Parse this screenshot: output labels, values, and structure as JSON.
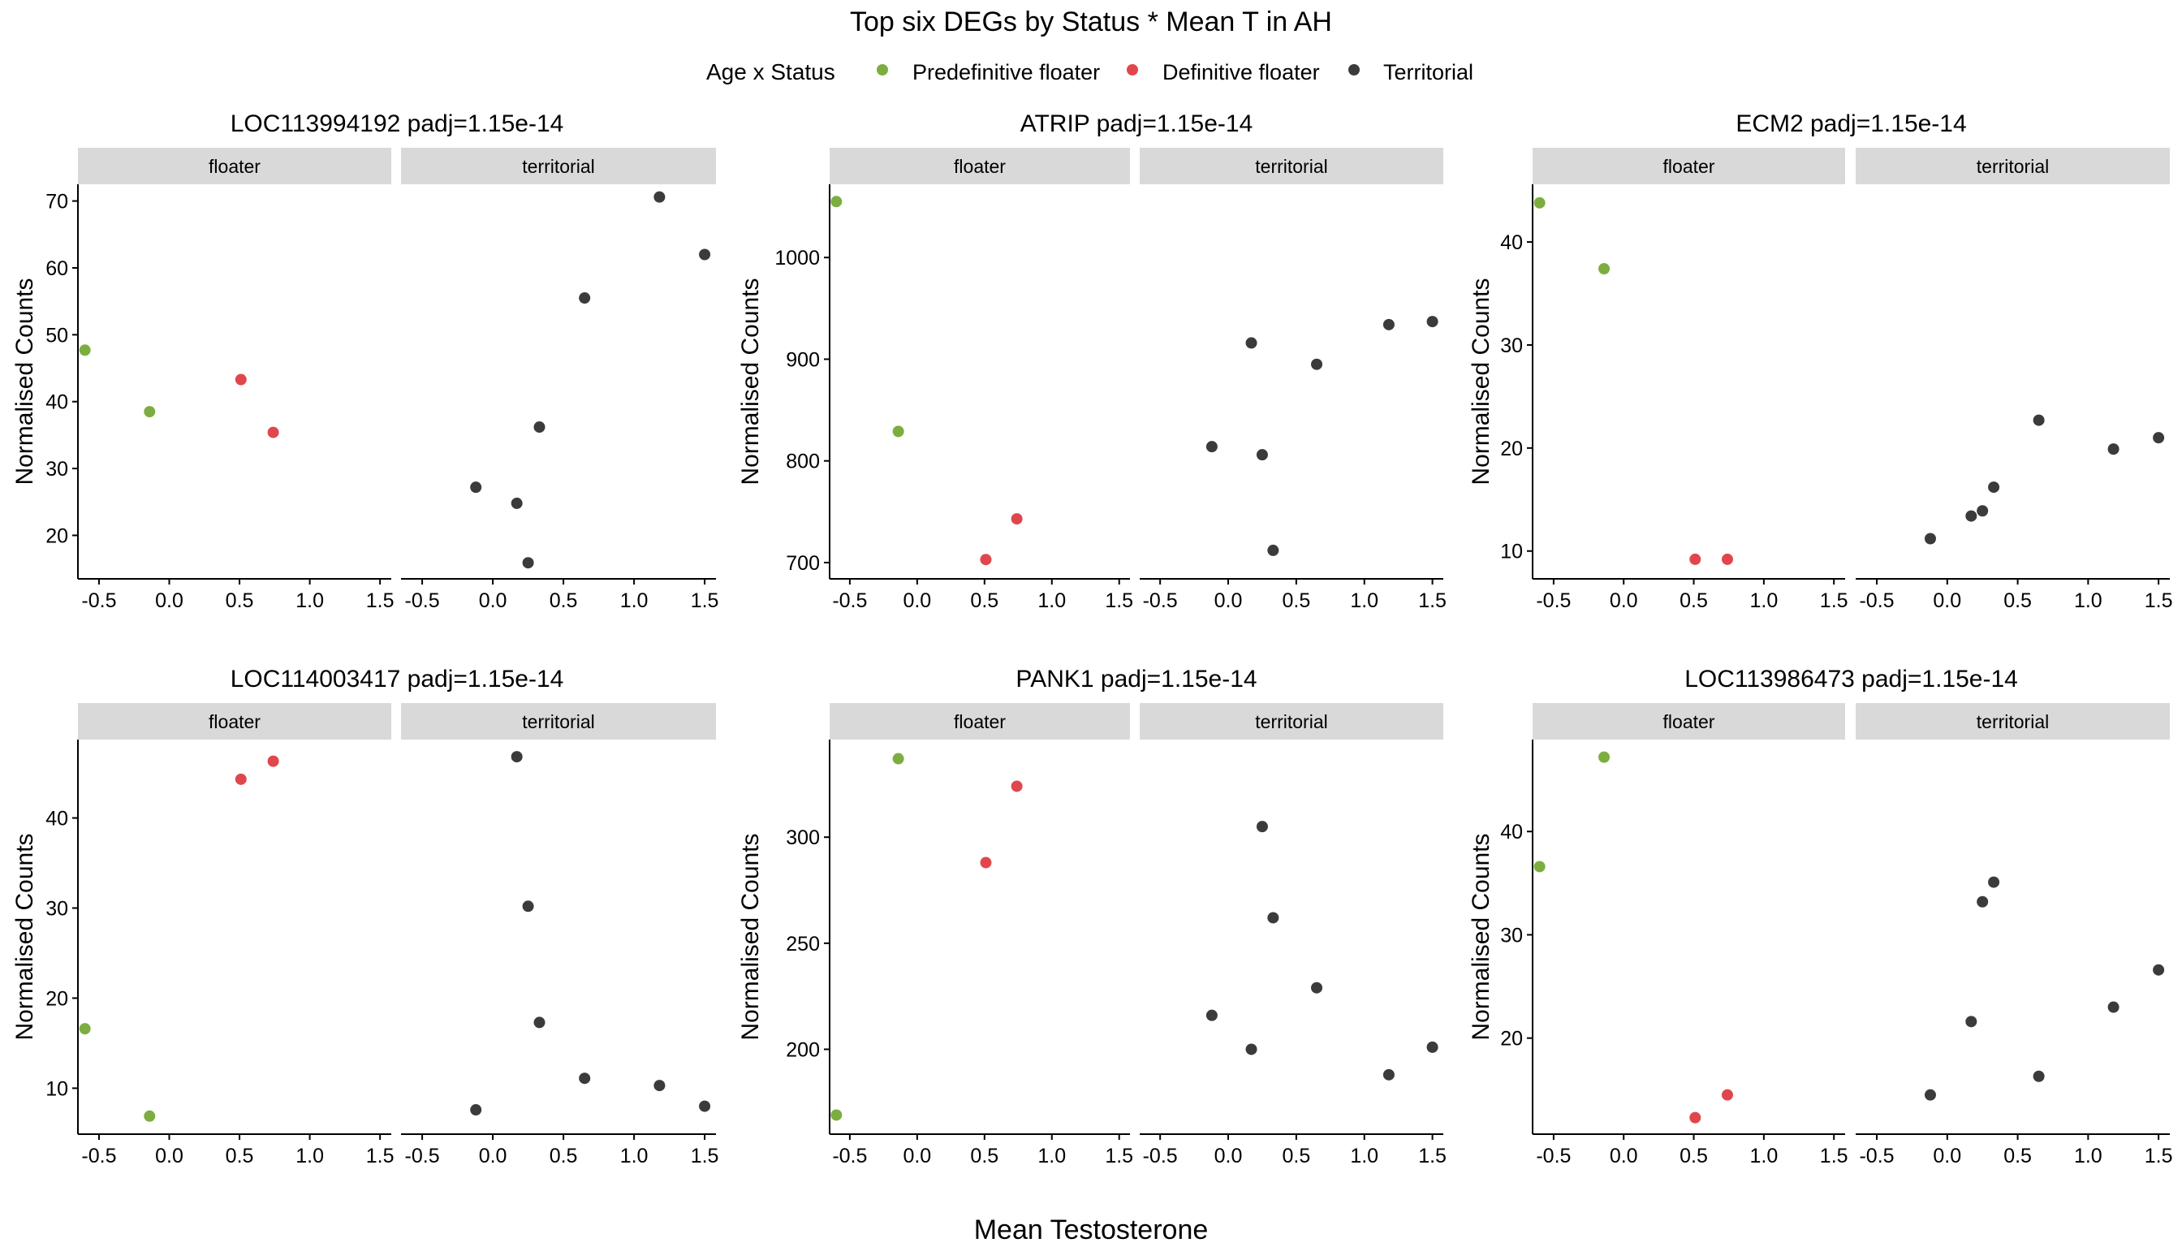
{
  "title": "Top six DEGs by Status * Mean T in AH",
  "xlabel": "Mean Testosterone",
  "ylabel": "Normalised Counts",
  "legend": {
    "title": "Age x Status",
    "position": "top",
    "entries": [
      {
        "name": "Predefinitive floater",
        "color": "#7CAE3F"
      },
      {
        "name": "Definitive floater",
        "color": "#E0474C"
      },
      {
        "name": "Territorial",
        "color": "#3B3B3B"
      }
    ]
  },
  "facet_labels": [
    "floater",
    "territorial"
  ],
  "x_ticks": [
    -0.5,
    0.0,
    0.5,
    1.0,
    1.5
  ],
  "x_tick_labels": [
    "-0.5",
    "0.0",
    "0.5",
    "1.0",
    "1.5"
  ],
  "chart_data": [
    {
      "type": "scatter",
      "title": "LOC113994192 padj=1.15e-14",
      "xlim": [
        -0.65,
        1.58
      ],
      "ylim": [
        13.5,
        72.5
      ],
      "y_ticks": [
        20,
        30,
        40,
        50,
        60,
        70
      ],
      "floater": [
        {
          "x": -0.6,
          "y": 47.7,
          "group": 0
        },
        {
          "x": -0.14,
          "y": 38.5,
          "group": 0
        },
        {
          "x": 0.51,
          "y": 43.3,
          "group": 1
        },
        {
          "x": 0.74,
          "y": 35.4,
          "group": 1
        }
      ],
      "territorial": [
        {
          "x": -0.12,
          "y": 27.2,
          "group": 2
        },
        {
          "x": 0.17,
          "y": 24.8,
          "group": 2
        },
        {
          "x": 0.25,
          "y": 15.9,
          "group": 2
        },
        {
          "x": 0.33,
          "y": 36.2,
          "group": 2
        },
        {
          "x": 0.65,
          "y": 55.5,
          "group": 2
        },
        {
          "x": 1.18,
          "y": 70.6,
          "group": 2
        },
        {
          "x": 1.5,
          "y": 62.0,
          "group": 2
        }
      ]
    },
    {
      "type": "scatter",
      "title": "ATRIP padj=1.15e-14",
      "xlim": [
        -0.65,
        1.58
      ],
      "ylim": [
        684,
        1072
      ],
      "y_ticks": [
        700,
        800,
        900,
        1000
      ],
      "floater": [
        {
          "x": -0.6,
          "y": 1055,
          "group": 0
        },
        {
          "x": -0.14,
          "y": 829,
          "group": 0
        },
        {
          "x": 0.51,
          "y": 703,
          "group": 1
        },
        {
          "x": 0.74,
          "y": 743,
          "group": 1
        }
      ],
      "territorial": [
        {
          "x": -0.12,
          "y": 814,
          "group": 2
        },
        {
          "x": 0.17,
          "y": 916,
          "group": 2
        },
        {
          "x": 0.25,
          "y": 806,
          "group": 2
        },
        {
          "x": 0.33,
          "y": 712,
          "group": 2
        },
        {
          "x": 0.65,
          "y": 895,
          "group": 2
        },
        {
          "x": 1.18,
          "y": 934,
          "group": 2
        },
        {
          "x": 1.5,
          "y": 937,
          "group": 2
        }
      ]
    },
    {
      "type": "scatter",
      "title": "ECM2 padj=1.15e-14",
      "xlim": [
        -0.65,
        1.58
      ],
      "ylim": [
        7.3,
        45.6
      ],
      "y_ticks": [
        10,
        20,
        30,
        40
      ],
      "floater": [
        {
          "x": -0.6,
          "y": 43.8,
          "group": 0
        },
        {
          "x": -0.14,
          "y": 37.4,
          "group": 0
        },
        {
          "x": 0.51,
          "y": 9.2,
          "group": 1
        },
        {
          "x": 0.74,
          "y": 9.2,
          "group": 1
        }
      ],
      "territorial": [
        {
          "x": -0.12,
          "y": 11.2,
          "group": 2
        },
        {
          "x": 0.17,
          "y": 13.4,
          "group": 2
        },
        {
          "x": 0.25,
          "y": 13.9,
          "group": 2
        },
        {
          "x": 0.33,
          "y": 16.2,
          "group": 2
        },
        {
          "x": 0.65,
          "y": 22.7,
          "group": 2
        },
        {
          "x": 1.18,
          "y": 19.9,
          "group": 2
        },
        {
          "x": 1.5,
          "y": 21.0,
          "group": 2
        }
      ]
    },
    {
      "type": "scatter",
      "title": "LOC114003417 padj=1.15e-14",
      "xlim": [
        -0.65,
        1.58
      ],
      "ylim": [
        4.9,
        48.7
      ],
      "y_ticks": [
        10,
        20,
        30,
        40
      ],
      "floater": [
        {
          "x": -0.6,
          "y": 16.6,
          "group": 0
        },
        {
          "x": -0.14,
          "y": 6.9,
          "group": 0
        },
        {
          "x": 0.51,
          "y": 44.3,
          "group": 1
        },
        {
          "x": 0.74,
          "y": 46.3,
          "group": 1
        }
      ],
      "territorial": [
        {
          "x": -0.12,
          "y": 7.6,
          "group": 2
        },
        {
          "x": 0.17,
          "y": 46.8,
          "group": 2
        },
        {
          "x": 0.25,
          "y": 30.2,
          "group": 2
        },
        {
          "x": 0.33,
          "y": 17.3,
          "group": 2
        },
        {
          "x": 0.65,
          "y": 11.1,
          "group": 2
        },
        {
          "x": 1.18,
          "y": 10.3,
          "group": 2
        },
        {
          "x": 1.5,
          "y": 8.0,
          "group": 2
        }
      ]
    },
    {
      "type": "scatter",
      "title": "PANK1 padj=1.15e-14",
      "xlim": [
        -0.65,
        1.58
      ],
      "ylim": [
        160,
        346
      ],
      "y_ticks": [
        200,
        250,
        300
      ],
      "floater": [
        {
          "x": -0.6,
          "y": 169,
          "group": 0
        },
        {
          "x": -0.14,
          "y": 337,
          "group": 0
        },
        {
          "x": 0.51,
          "y": 288,
          "group": 1
        },
        {
          "x": 0.74,
          "y": 324,
          "group": 1
        }
      ],
      "territorial": [
        {
          "x": -0.12,
          "y": 216,
          "group": 2
        },
        {
          "x": 0.17,
          "y": 200,
          "group": 2
        },
        {
          "x": 0.25,
          "y": 305,
          "group": 2
        },
        {
          "x": 0.33,
          "y": 262,
          "group": 2
        },
        {
          "x": 0.65,
          "y": 229,
          "group": 2
        },
        {
          "x": 1.18,
          "y": 188,
          "group": 2
        },
        {
          "x": 1.5,
          "y": 201,
          "group": 2
        }
      ]
    },
    {
      "type": "scatter",
      "title": "LOC113986473 padj=1.15e-14",
      "xlim": [
        -0.65,
        1.58
      ],
      "ylim": [
        10.7,
        48.9
      ],
      "y_ticks": [
        20,
        30,
        40
      ],
      "floater": [
        {
          "x": -0.6,
          "y": 36.6,
          "group": 0
        },
        {
          "x": -0.14,
          "y": 47.2,
          "group": 0
        },
        {
          "x": 0.51,
          "y": 12.3,
          "group": 1
        },
        {
          "x": 0.74,
          "y": 14.5,
          "group": 1
        }
      ],
      "territorial": [
        {
          "x": -0.12,
          "y": 14.5,
          "group": 2
        },
        {
          "x": 0.17,
          "y": 21.6,
          "group": 2
        },
        {
          "x": 0.25,
          "y": 33.2,
          "group": 2
        },
        {
          "x": 0.33,
          "y": 35.1,
          "group": 2
        },
        {
          "x": 0.65,
          "y": 16.3,
          "group": 2
        },
        {
          "x": 1.18,
          "y": 23.0,
          "group": 2
        },
        {
          "x": 1.5,
          "y": 26.6,
          "group": 2
        }
      ]
    }
  ]
}
